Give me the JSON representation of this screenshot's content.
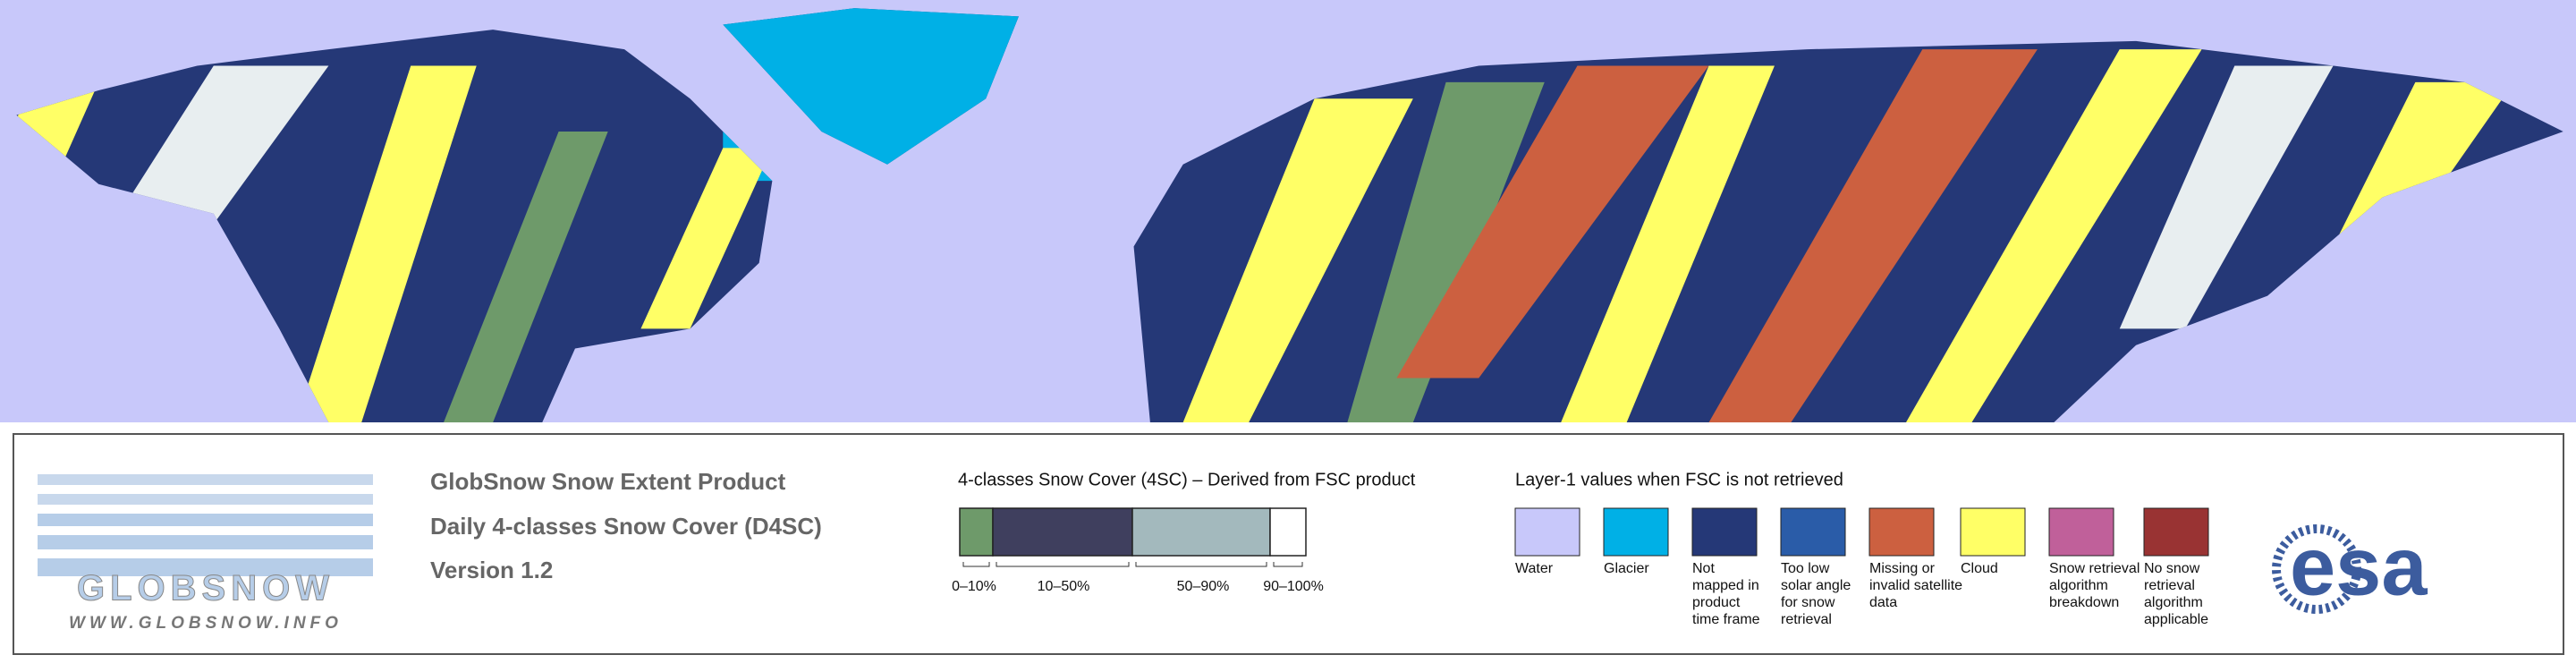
{
  "logo": {
    "name": "GLOBSNOW",
    "url": "WWW.GLOBSNOW.INFO"
  },
  "header": {
    "title": "GlobSnow Snow Extent Product",
    "subtitle": "Daily 4-classes Snow Cover (D4SC)",
    "version": "Version 1.2"
  },
  "snow_cover_legend": {
    "title": "4-classes Snow Cover (4SC) – Derived from FSC product",
    "classes": [
      {
        "label": "0–10%",
        "color": "#6e9a6a"
      },
      {
        "label": "10–50%",
        "color": "#3f3f5e"
      },
      {
        "label": "50–90%",
        "color": "#a3b9bd"
      },
      {
        "label": "90–100%",
        "color": "#ffffff"
      }
    ]
  },
  "layer1_legend": {
    "title": "Layer-1 values when FSC is not retrieved",
    "items": [
      {
        "label_lines": [
          "Water"
        ],
        "color": "#c8c8fa"
      },
      {
        "label_lines": [
          "Glacier"
        ],
        "color": "#00b0e6"
      },
      {
        "label_lines": [
          "Not",
          "mapped in",
          "product",
          "time frame"
        ],
        "color": "#253877"
      },
      {
        "label_lines": [
          "Too low",
          "solar angle",
          "for snow",
          "retrieval"
        ],
        "color": "#2a5ca8"
      },
      {
        "label_lines": [
          "Missing or",
          "invalid satellite",
          "data"
        ],
        "color": "#cc6040"
      },
      {
        "label_lines": [
          "Cloud"
        ],
        "color": "#ffff66"
      },
      {
        "label_lines": [
          "Snow retrieval",
          "algorithm",
          "breakdown"
        ],
        "color": "#c0609a"
      },
      {
        "label_lines": [
          "No snow",
          "retrieval",
          "algorithm",
          "applicable"
        ],
        "color": "#993333"
      }
    ]
  },
  "agency_logo": "esa"
}
